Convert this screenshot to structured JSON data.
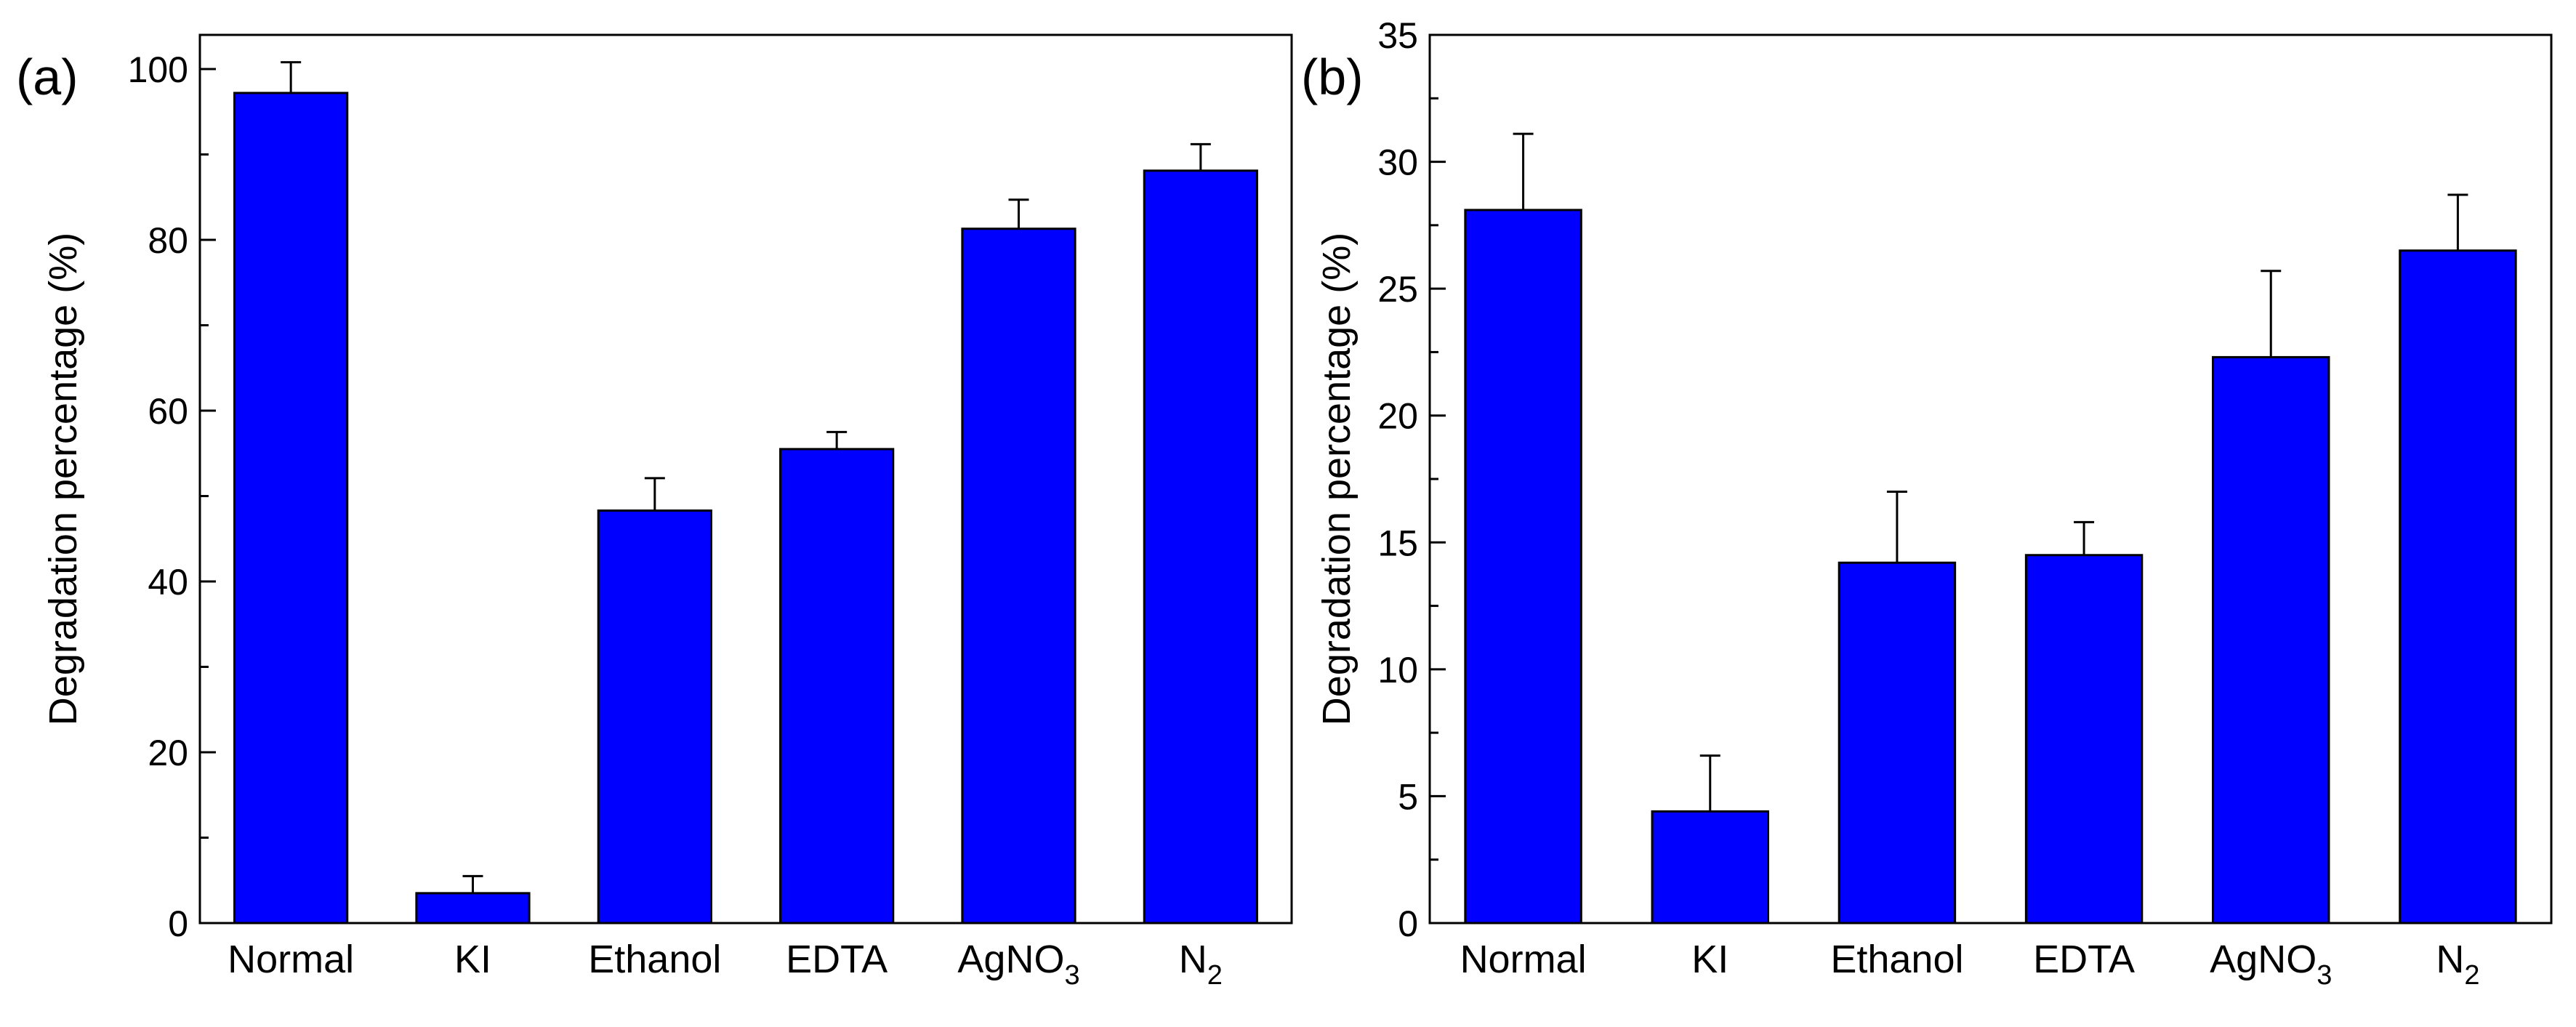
{
  "chart_data": [
    {
      "type": "bar",
      "panel_label": "(a)",
      "title": "",
      "xlabel": "",
      "ylabel": "Degradation percentage (%)",
      "ylim": [
        0,
        104
      ],
      "yticks": [
        0,
        20,
        40,
        60,
        80,
        100
      ],
      "ytick_labels": [
        "0",
        "20",
        "40",
        "60",
        "80",
        "100"
      ],
      "minor_tick_step": 10,
      "categories": [
        {
          "label": "Normal",
          "sub": ""
        },
        {
          "label": "KI",
          "sub": ""
        },
        {
          "label": "Ethanol",
          "sub": ""
        },
        {
          "label": "EDTA",
          "sub": ""
        },
        {
          "label": "AgNO",
          "sub": "3"
        },
        {
          "label": "N",
          "sub": "2"
        }
      ],
      "values": [
        97.2,
        3.5,
        48.3,
        55.5,
        81.3,
        88.1
      ],
      "errors": [
        3.6,
        2.0,
        3.8,
        2.0,
        3.4,
        3.1
      ],
      "bar_color": "#0000FF",
      "grid": false
    },
    {
      "type": "bar",
      "panel_label": "(b)",
      "title": "",
      "xlabel": "",
      "ylabel": "Degradation percentage (%)",
      "ylim": [
        0,
        35
      ],
      "yticks": [
        0,
        5,
        10,
        15,
        20,
        25,
        30,
        35
      ],
      "ytick_labels": [
        "0",
        "5",
        "10",
        "15",
        "20",
        "25",
        "30",
        "35"
      ],
      "minor_tick_step": 2.5,
      "categories": [
        {
          "label": "Normal",
          "sub": ""
        },
        {
          "label": "KI",
          "sub": ""
        },
        {
          "label": "Ethanol",
          "sub": ""
        },
        {
          "label": "EDTA",
          "sub": ""
        },
        {
          "label": "AgNO",
          "sub": "3"
        },
        {
          "label": "N",
          "sub": "2"
        }
      ],
      "values": [
        28.1,
        4.4,
        14.2,
        14.5,
        22.3,
        26.5
      ],
      "errors": [
        3.0,
        2.2,
        2.8,
        1.3,
        3.4,
        2.2
      ],
      "bar_color": "#0000FF",
      "grid": false
    }
  ]
}
